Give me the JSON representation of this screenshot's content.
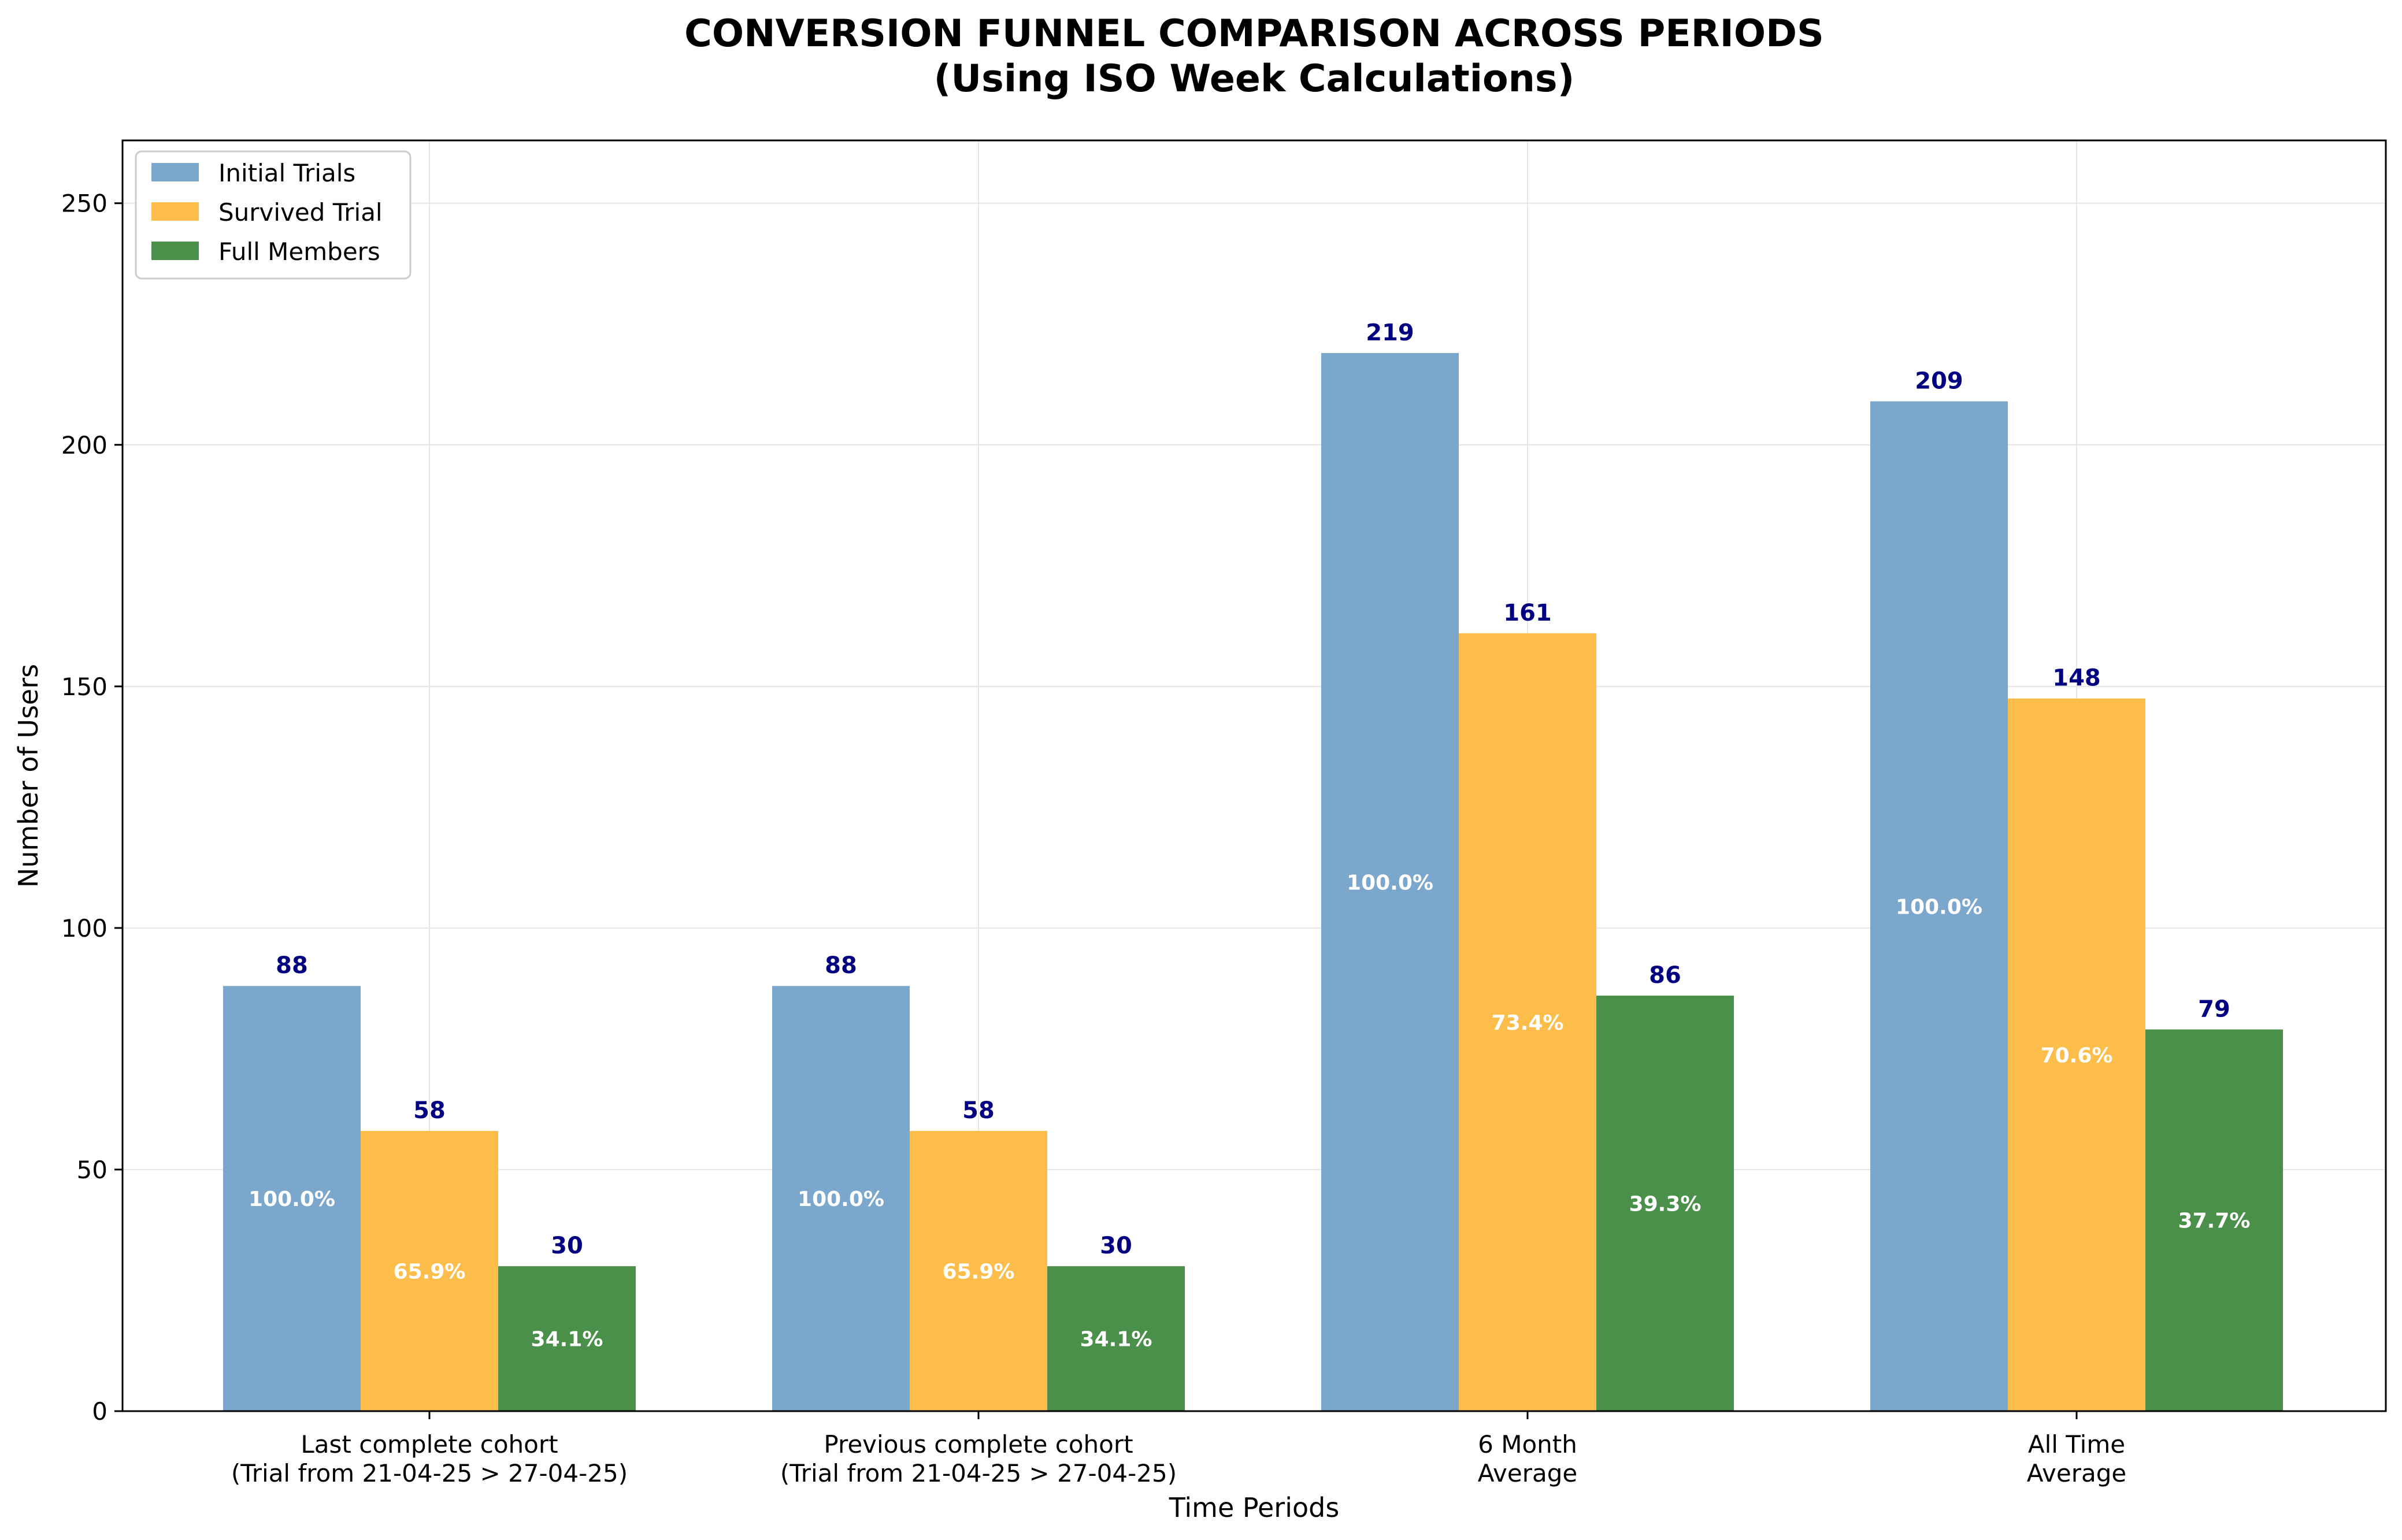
{
  "chart_data": {
    "type": "bar",
    "title": [
      "CONVERSION FUNNEL COMPARISON ACROSS PERIODS",
      "(Using ISO Week Calculations)"
    ],
    "xlabel": "Time Periods",
    "ylabel": "Number of Users",
    "ylim": [
      0,
      263
    ],
    "yticks": [
      0,
      50,
      100,
      150,
      200,
      250
    ],
    "grid": true,
    "legend_position": "top-left",
    "categories": [
      [
        "Last complete cohort",
        "(Trial from 21-04-25 > 27-04-25)"
      ],
      [
        "Previous complete cohort",
        "(Trial from 21-04-25 > 27-04-25)"
      ],
      [
        "6 Month",
        "Average"
      ],
      [
        "All Time",
        "Average"
      ]
    ],
    "series": [
      {
        "name": "Initial Trials",
        "color": "#7ba7cc",
        "values": [
          88,
          88,
          219,
          209
        ],
        "value_labels": [
          "88",
          "88",
          "219",
          "209"
        ],
        "pct_labels": [
          "100.0%",
          "100.0%",
          "100.0%",
          "100.0%"
        ]
      },
      {
        "name": "Survived Trial",
        "color": "#fdbd4b",
        "values": [
          58,
          58,
          161,
          147.5
        ],
        "value_labels": [
          "58",
          "58",
          "161",
          "148"
        ],
        "pct_labels": [
          "65.9%",
          "65.9%",
          "73.4%",
          "70.6%"
        ]
      },
      {
        "name": "Full Members",
        "color": "#4a8f4a",
        "values": [
          30,
          30,
          86,
          79
        ],
        "value_labels": [
          "30",
          "30",
          "86",
          "79"
        ],
        "pct_labels": [
          "34.1%",
          "34.1%",
          "39.3%",
          "37.7%"
        ]
      }
    ],
    "colors": {
      "value_label": "#000080",
      "pct_label": "#ffffff"
    }
  }
}
